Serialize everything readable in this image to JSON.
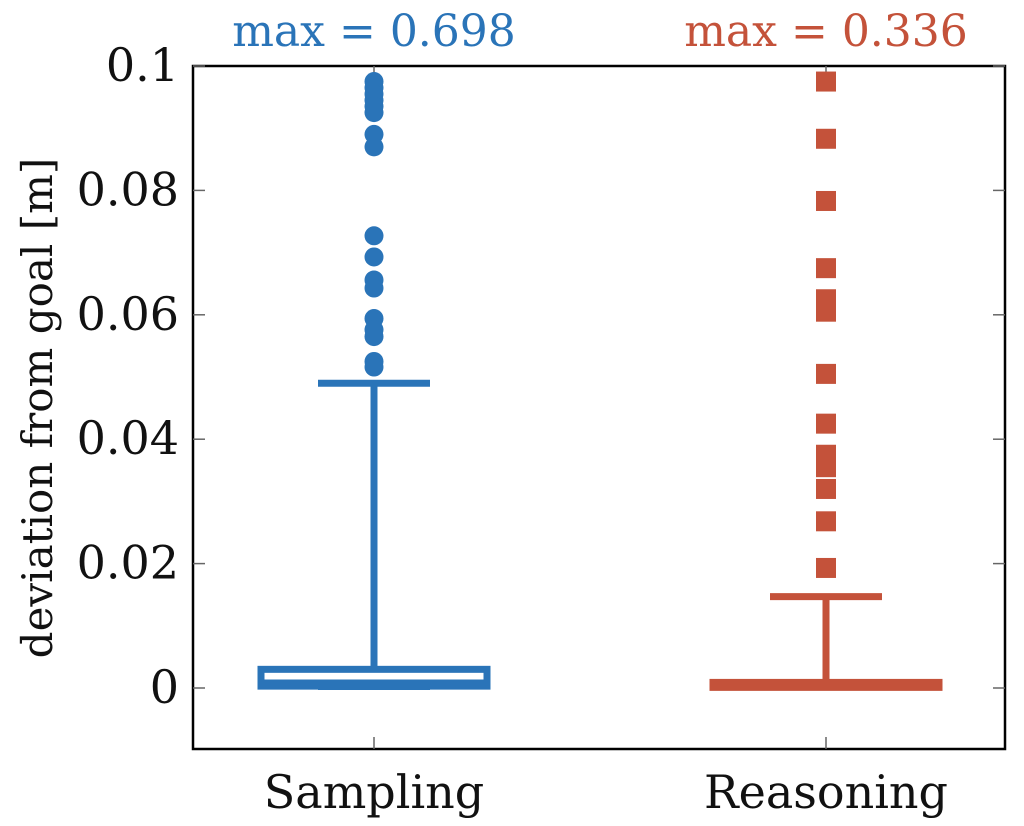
{
  "chart_data": {
    "type": "box",
    "title": "",
    "xlabel": "",
    "ylabel": "deviation from goal [m]",
    "ylim": [
      -0.0095,
      0.1
    ],
    "yticks": [
      0,
      0.02,
      0.04,
      0.06,
      0.08,
      0.1
    ],
    "ytick_labels": [
      "0",
      "0.02",
      "0.04",
      "0.06",
      "0.08",
      "0.1"
    ],
    "categories": [
      "Sampling",
      "Reasoning"
    ],
    "series": [
      {
        "name": "Sampling",
        "color": "#2a74b8",
        "marker": "circle",
        "max_label": "max = 0.698",
        "whisker_low": 0.0,
        "q1": 0.0003,
        "median": 0.0008,
        "q3": 0.003,
        "whisker_high": 0.049,
        "outliers": [
          0.0975,
          0.0965,
          0.0955,
          0.0945,
          0.0935,
          0.0925,
          0.089,
          0.087,
          0.0727,
          0.0693,
          0.0656,
          0.0643,
          0.0594,
          0.0576,
          0.0565,
          0.0525,
          0.0516
        ]
      },
      {
        "name": "Reasoning",
        "color": "#c4523a",
        "marker": "square",
        "max_label": "max = 0.336",
        "whisker_low": 0.0,
        "q1": 0.0001,
        "median": 0.0004,
        "q3": 0.0009,
        "whisker_high": 0.0147,
        "outliers": [
          0.0975,
          0.0883,
          0.0783,
          0.0675,
          0.0625,
          0.0605,
          0.0505,
          0.0425,
          0.0375,
          0.0355,
          0.032,
          0.0268,
          0.0193
        ]
      }
    ]
  }
}
